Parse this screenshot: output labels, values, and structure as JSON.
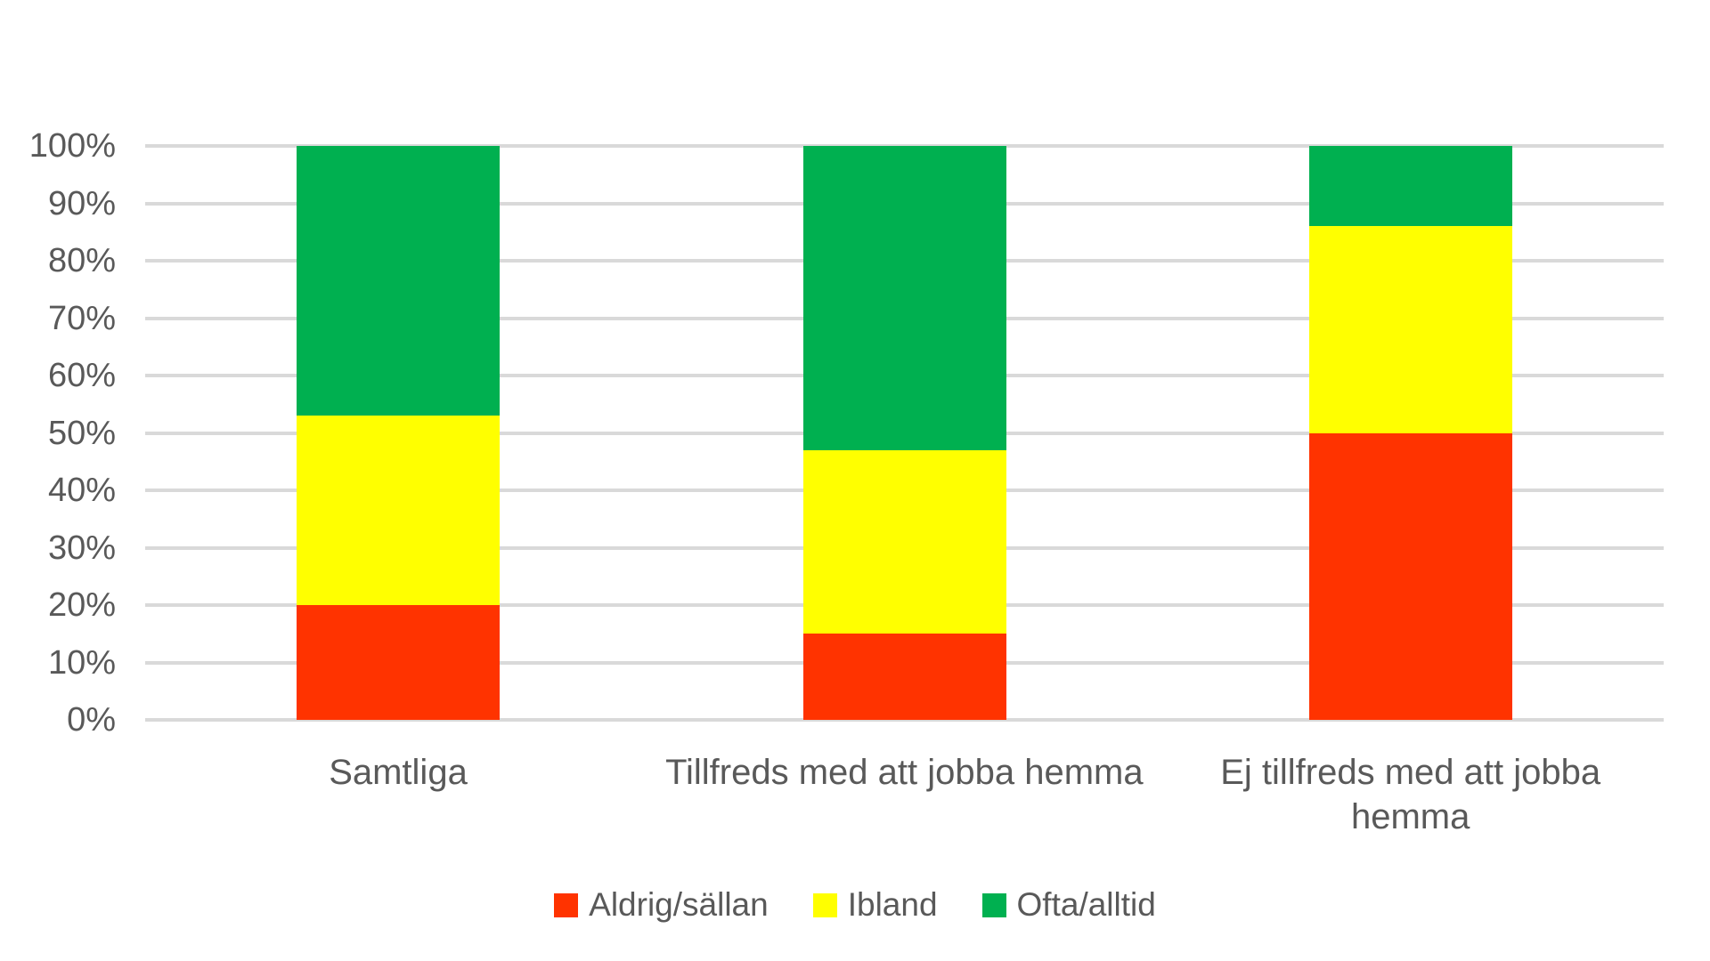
{
  "chart_data": {
    "type": "bar",
    "stacked": true,
    "percent_stacked": true,
    "title": "",
    "xlabel": "",
    "ylabel": "",
    "categories": [
      "Samtliga",
      "Tillfreds med att jobba hemma",
      "Ej tillfreds med att jobba hemma"
    ],
    "series": [
      {
        "name": "Aldrig/sällan",
        "color": "#FF3300",
        "values": [
          20,
          15,
          50
        ]
      },
      {
        "name": "Ibland",
        "color": "#FFFF00",
        "values": [
          33,
          32,
          36
        ]
      },
      {
        "name": "Ofta/alltid",
        "color": "#00B050",
        "values": [
          47,
          53,
          14
        ]
      }
    ],
    "ylim": [
      0,
      100
    ],
    "ytick_labels": [
      "0%",
      "10%",
      "20%",
      "30%",
      "40%",
      "50%",
      "60%",
      "70%",
      "80%",
      "90%",
      "100%"
    ],
    "grid": true,
    "legend_position": "bottom"
  },
  "colors": {
    "text": "#595959",
    "gridline": "#D9D9D9",
    "background": "#FFFFFF"
  }
}
